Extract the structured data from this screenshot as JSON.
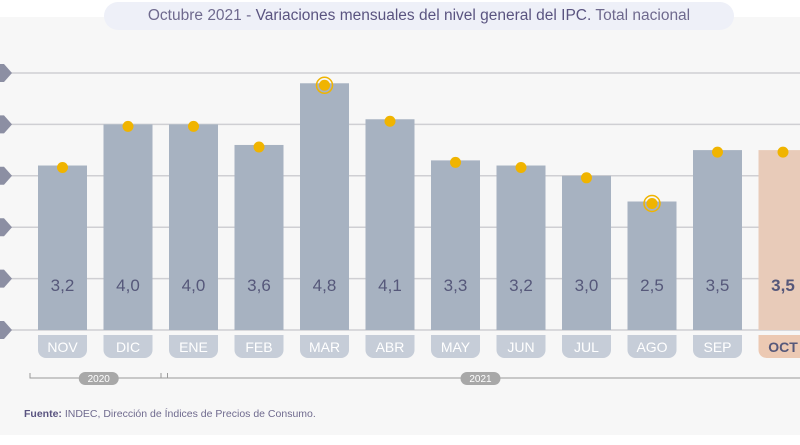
{
  "title": {
    "prefix": "Octubre 2021 - ",
    "main": "Variaciones mensuales del nivel general del IPC.",
    "suffix": " Total nacional"
  },
  "chart_data": {
    "type": "bar",
    "categories": [
      "NOV",
      "DIC",
      "ENE",
      "FEB",
      "MAR",
      "ABR",
      "MAY",
      "JUN",
      "JUL",
      "AGO",
      "SEP",
      "OCT"
    ],
    "values": [
      3.2,
      4.0,
      4.0,
      3.6,
      4.8,
      4.1,
      3.3,
      3.2,
      3.0,
      2.5,
      3.5,
      3.5
    ],
    "labels": [
      "3,2",
      "4,0",
      "4,0",
      "3,6",
      "4,8",
      "4,1",
      "3,3",
      "3,2",
      "3,0",
      "2,5",
      "3,5",
      "3,5"
    ],
    "highlight": {
      "max": "MAR",
      "min": "AGO",
      "current": "OCT"
    },
    "year_groups": [
      {
        "label": "2020",
        "from": "NOV",
        "to": "DIC"
      },
      {
        "label": "2021",
        "from": "ENE",
        "to": "OCT"
      }
    ],
    "ylim": [
      0,
      5
    ],
    "grid": true,
    "colors": {
      "bar": "#a7b2c1",
      "current_bar": "#e8cbb9",
      "marker": "#f0b400",
      "month_pill": "#c6cdd8",
      "current_pill": "#ecc9b3",
      "axis_marker": "#8c8fa3"
    }
  },
  "footer": {
    "label": "Fuente:",
    "text": " INDEC, Dirección de Índices de Precios de Consumo."
  }
}
